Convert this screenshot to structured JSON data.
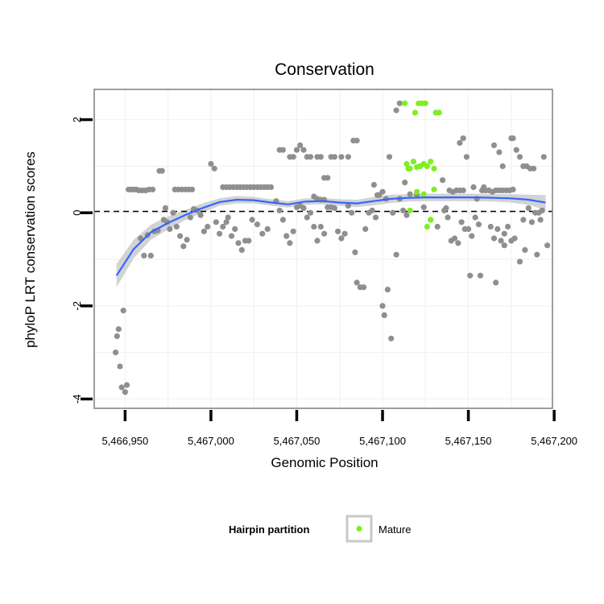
{
  "chart_data": {
    "type": "scatter",
    "title": "Conservation",
    "xlabel": "Genomic Position",
    "ylabel": "phyloP LRT conservation scores",
    "xlim": [
      5466932,
      5467199
    ],
    "ylim": [
      -4.2,
      2.65
    ],
    "x_ticks": [
      {
        "value": 5466950,
        "label": "5,466,950"
      },
      {
        "value": 5467000,
        "label": "5,467,000"
      },
      {
        "value": 5467050,
        "label": "5,467,050"
      },
      {
        "value": 5467100,
        "label": "5,467,100"
      },
      {
        "value": 5467150,
        "label": "5,467,150"
      },
      {
        "value": 5467200,
        "label": "5,467,200"
      }
    ],
    "y_ticks": [
      {
        "value": -4,
        "label": "-4"
      },
      {
        "value": -2,
        "label": "-2"
      },
      {
        "value": 0,
        "label": "0"
      },
      {
        "value": 2,
        "label": "2"
      }
    ],
    "reference_line": {
      "y": 0,
      "style": "dashed"
    },
    "legend": {
      "title": "Hairpin partition",
      "position": "bottom",
      "entries": [
        {
          "label": "Mature",
          "color": "#80ee22"
        }
      ]
    },
    "colors": {
      "hairpin": "#8f8f8f",
      "mature": "#80ee22",
      "smooth": "#3366ff",
      "ribbon": "#c8c8c8",
      "border": "#7f7f7f",
      "grid": "#f2f2f2"
    },
    "series": [
      {
        "name": "Hairpin",
        "points": [
          [
            5466944.5,
            -3.0
          ],
          [
            5466945.3,
            -2.65
          ],
          [
            5466946.2,
            -2.5
          ],
          [
            5466947.0,
            -3.3
          ],
          [
            5466948.0,
            -3.75
          ],
          [
            5466949.0,
            -2.1
          ],
          [
            5466950.0,
            -3.85
          ],
          [
            5466951.0,
            -3.7
          ],
          [
            5466952.0,
            0.5
          ],
          [
            5466953.5,
            0.5
          ],
          [
            5466955.0,
            0.5
          ],
          [
            5466956.5,
            0.5
          ],
          [
            5466958.0,
            0.48
          ],
          [
            5466960.0,
            0.48
          ],
          [
            5466962.0,
            0.48
          ],
          [
            5466964.0,
            0.5
          ],
          [
            5466966.0,
            0.5
          ],
          [
            5466959.0,
            -0.55
          ],
          [
            5466961.0,
            -0.92
          ],
          [
            5466963.0,
            -0.48
          ],
          [
            5466965.0,
            -0.92
          ],
          [
            5466967.0,
            -0.4
          ],
          [
            5466969.0,
            -0.38
          ],
          [
            5466970.0,
            0.9
          ],
          [
            5466971.5,
            0.9
          ],
          [
            5466972.5,
            -0.15
          ],
          [
            5466973.5,
            0.1
          ],
          [
            5466974.5,
            -0.2
          ],
          [
            5466976.0,
            -0.35
          ],
          [
            5466978.0,
            0.0
          ],
          [
            5466979.0,
            0.5
          ],
          [
            5466981.0,
            0.5
          ],
          [
            5466983.0,
            0.5
          ],
          [
            5466985.0,
            0.5
          ],
          [
            5466987.0,
            0.5
          ],
          [
            5466989.0,
            0.5
          ],
          [
            5466980.0,
            -0.3
          ],
          [
            5466982.0,
            -0.5
          ],
          [
            5466984.0,
            -0.72
          ],
          [
            5466986.0,
            -0.58
          ],
          [
            5466988.0,
            -0.1
          ],
          [
            5466990.0,
            0.08
          ],
          [
            5466992.0,
            0.05
          ],
          [
            5466994.0,
            -0.05
          ],
          [
            5466996.0,
            -0.4
          ],
          [
            5466998.0,
            -0.3
          ],
          [
            5467000.0,
            1.05
          ],
          [
            5467002.0,
            0.95
          ],
          [
            5467003.0,
            -0.2
          ],
          [
            5467005.0,
            -0.45
          ],
          [
            5467007.0,
            -0.3
          ],
          [
            5467009.0,
            -0.2
          ],
          [
            5467010.0,
            -0.1
          ],
          [
            5467012.0,
            -0.5
          ],
          [
            5467014.0,
            -0.35
          ],
          [
            5467016.0,
            -0.65
          ],
          [
            5467018.0,
            -0.8
          ],
          [
            5467020.0,
            -0.6
          ],
          [
            5467022.0,
            -0.6
          ],
          [
            5467024.0,
            -0.15
          ],
          [
            5467027.0,
            -0.25
          ],
          [
            5467030.0,
            -0.45
          ],
          [
            5467033.0,
            -0.35
          ],
          [
            5467007.0,
            0.55
          ],
          [
            5467009.0,
            0.55
          ],
          [
            5467011.0,
            0.55
          ],
          [
            5467013.0,
            0.55
          ],
          [
            5467015.0,
            0.55
          ],
          [
            5467017.0,
            0.55
          ],
          [
            5467019.0,
            0.55
          ],
          [
            5467021.0,
            0.55
          ],
          [
            5467023.0,
            0.55
          ],
          [
            5467025.0,
            0.55
          ],
          [
            5467027.0,
            0.55
          ],
          [
            5467029.0,
            0.55
          ],
          [
            5467031.0,
            0.55
          ],
          [
            5467033.0,
            0.55
          ],
          [
            5467035.0,
            0.55
          ],
          [
            5467038.0,
            0.25
          ],
          [
            5467040.0,
            0.05
          ],
          [
            5467042.0,
            -0.15
          ],
          [
            5467044.0,
            -0.5
          ],
          [
            5467046.0,
            -0.65
          ],
          [
            5467048.0,
            -0.4
          ],
          [
            5467050.0,
            0.12
          ],
          [
            5467052.0,
            0.15
          ],
          [
            5467054.0,
            0.1
          ],
          [
            5467056.0,
            -0.1
          ],
          [
            5467058.0,
            0.0
          ],
          [
            5467060.0,
            -0.3
          ],
          [
            5467062.0,
            -0.6
          ],
          [
            5467064.0,
            -0.3
          ],
          [
            5467066.0,
            -0.45
          ],
          [
            5467040.0,
            1.35
          ],
          [
            5467042.0,
            1.35
          ],
          [
            5467046.0,
            1.2
          ],
          [
            5467048.0,
            1.2
          ],
          [
            5467050.0,
            1.35
          ],
          [
            5467052.0,
            1.45
          ],
          [
            5467054.0,
            1.35
          ],
          [
            5467056.0,
            1.2
          ],
          [
            5467058.0,
            1.2
          ],
          [
            5467062.0,
            1.2
          ],
          [
            5467064.0,
            1.2
          ],
          [
            5467066.0,
            0.75
          ],
          [
            5467068.0,
            0.75
          ],
          [
            5467070.0,
            1.2
          ],
          [
            5467072.0,
            1.2
          ],
          [
            5467076.0,
            1.2
          ],
          [
            5467080.0,
            1.2
          ],
          [
            5467083.0,
            1.55
          ],
          [
            5467085.0,
            1.55
          ],
          [
            5467060.0,
            0.35
          ],
          [
            5467062.0,
            0.3
          ],
          [
            5467064.0,
            0.28
          ],
          [
            5467066.0,
            0.28
          ],
          [
            5467068.0,
            0.12
          ],
          [
            5467070.0,
            0.12
          ],
          [
            5467072.0,
            0.1
          ],
          [
            5467074.0,
            -0.4
          ],
          [
            5467076.0,
            -0.55
          ],
          [
            5467078.0,
            -0.45
          ],
          [
            5467080.0,
            0.15
          ],
          [
            5467082.0,
            0.0
          ],
          [
            5467084.0,
            -0.85
          ],
          [
            5467085.0,
            -1.5
          ],
          [
            5467087.0,
            -1.6
          ],
          [
            5467089.0,
            -1.6
          ],
          [
            5467090.0,
            -0.35
          ],
          [
            5467092.0,
            0.0
          ],
          [
            5467094.0,
            0.05
          ],
          [
            5467096.0,
            -0.1
          ],
          [
            5467098.0,
            0.38
          ],
          [
            5467100.0,
            -2.0
          ],
          [
            5467101.0,
            -2.2
          ],
          [
            5467103.0,
            -1.65
          ],
          [
            5467105.0,
            -2.7
          ],
          [
            5467095.0,
            0.6
          ],
          [
            5467097.0,
            0.38
          ],
          [
            5467100.0,
            0.45
          ],
          [
            5467102.0,
            0.3
          ],
          [
            5467104.0,
            1.2
          ],
          [
            5467106.0,
            0.0
          ],
          [
            5467108.0,
            -0.9
          ],
          [
            5467110.0,
            0.3
          ],
          [
            5467112.0,
            0.05
          ],
          [
            5467114.0,
            -0.05
          ],
          [
            5467108.0,
            2.2
          ],
          [
            5467110.0,
            2.35
          ],
          [
            5467113.0,
            0.65
          ],
          [
            5467116.0,
            0.4
          ],
          [
            5467120.0,
            0.38
          ],
          [
            5467124.0,
            0.12
          ],
          [
            5467128.0,
            -0.15
          ],
          [
            5467132.0,
            -0.3
          ],
          [
            5467135.0,
            0.7
          ],
          [
            5467137.0,
            0.1
          ],
          [
            5467139.0,
            0.48
          ],
          [
            5467141.0,
            0.45
          ],
          [
            5467143.0,
            0.48
          ],
          [
            5467145.0,
            0.48
          ],
          [
            5467147.0,
            0.48
          ],
          [
            5467136.0,
            0.05
          ],
          [
            5467138.0,
            -0.1
          ],
          [
            5467140.0,
            -0.6
          ],
          [
            5467142.0,
            -0.55
          ],
          [
            5467144.0,
            -0.65
          ],
          [
            5467146.0,
            -0.2
          ],
          [
            5467148.0,
            -0.35
          ],
          [
            5467150.0,
            -0.35
          ],
          [
            5467152.0,
            -0.5
          ],
          [
            5467154.0,
            -0.1
          ],
          [
            5467156.0,
            -0.25
          ],
          [
            5467145.0,
            1.5
          ],
          [
            5467147.0,
            1.6
          ],
          [
            5467149.0,
            1.2
          ],
          [
            5467151.0,
            -1.35
          ],
          [
            5467153.0,
            0.55
          ],
          [
            5467155.0,
            0.3
          ],
          [
            5467157.0,
            -1.35
          ],
          [
            5467159.0,
            0.55
          ],
          [
            5467158.0,
            0.48
          ],
          [
            5467160.0,
            0.48
          ],
          [
            5467162.0,
            0.48
          ],
          [
            5467164.0,
            0.45
          ],
          [
            5467166.0,
            0.48
          ],
          [
            5467168.0,
            0.48
          ],
          [
            5467170.0,
            0.48
          ],
          [
            5467172.0,
            0.48
          ],
          [
            5467174.0,
            0.48
          ],
          [
            5467176.0,
            0.5
          ],
          [
            5467163.0,
            -0.3
          ],
          [
            5467165.0,
            -0.55
          ],
          [
            5467167.0,
            -0.35
          ],
          [
            5467169.0,
            -0.6
          ],
          [
            5467171.0,
            -0.7
          ],
          [
            5467173.0,
            -0.3
          ],
          [
            5467175.0,
            -0.6
          ],
          [
            5467177.0,
            -0.55
          ],
          [
            5467165.0,
            1.45
          ],
          [
            5467166.0,
            -1.5
          ],
          [
            5467168.0,
            1.3
          ],
          [
            5467170.0,
            1.0
          ],
          [
            5467171.0,
            -0.45
          ],
          [
            5467175.0,
            1.6
          ],
          [
            5467176.0,
            1.6
          ],
          [
            5467178.0,
            1.35
          ],
          [
            5467180.0,
            1.2
          ],
          [
            5467182.0,
            1.0
          ],
          [
            5467184.0,
            1.0
          ],
          [
            5467186.0,
            0.95
          ],
          [
            5467188.0,
            0.95
          ],
          [
            5467180.0,
            -1.05
          ],
          [
            5467182.0,
            -0.15
          ],
          [
            5467183.0,
            -0.8
          ],
          [
            5467185.0,
            0.1
          ],
          [
            5467187.0,
            -0.2
          ],
          [
            5467189.0,
            0.0
          ],
          [
            5467190.0,
            -0.9
          ],
          [
            5467191.0,
            0.0
          ],
          [
            5467192.0,
            -0.15
          ],
          [
            5467193.0,
            0.05
          ],
          [
            5467194.0,
            1.2
          ],
          [
            5467196.0,
            -0.7
          ]
        ]
      },
      {
        "name": "Mature",
        "points": [
          [
            5467113.0,
            2.35
          ],
          [
            5467119.0,
            2.15
          ],
          [
            5467121.0,
            2.35
          ],
          [
            5467123.0,
            2.35
          ],
          [
            5467125.0,
            2.35
          ],
          [
            5467131.0,
            2.15
          ],
          [
            5467133.0,
            2.15
          ],
          [
            5467114.0,
            1.05
          ],
          [
            5467116.0,
            0.95
          ],
          [
            5467118.0,
            1.1
          ],
          [
            5467120.0,
            0.98
          ],
          [
            5467122.0,
            1.0
          ],
          [
            5467124.0,
            1.05
          ],
          [
            5467126.0,
            1.0
          ],
          [
            5467128.0,
            1.1
          ],
          [
            5467130.0,
            0.95
          ],
          [
            5467115.0,
            0.95
          ],
          [
            5467120.0,
            0.45
          ],
          [
            5467124.0,
            0.4
          ],
          [
            5467130.0,
            0.5
          ],
          [
            5467116.0,
            0.05
          ],
          [
            5467126.0,
            -0.3
          ],
          [
            5467128.0,
            -0.15
          ]
        ]
      }
    ],
    "smooth_curve": {
      "x": [
        5466945,
        5466955,
        5466965,
        5466975,
        5466985,
        5466995,
        5467005,
        5467015,
        5467025,
        5467035,
        5467045,
        5467055,
        5467065,
        5467075,
        5467085,
        5467095,
        5467105,
        5467115,
        5467125,
        5467135,
        5467145,
        5467155,
        5467165,
        5467175,
        5467185,
        5467195
      ],
      "y": [
        -1.35,
        -0.78,
        -0.42,
        -0.22,
        -0.05,
        0.1,
        0.23,
        0.28,
        0.27,
        0.22,
        0.18,
        0.24,
        0.25,
        0.22,
        0.2,
        0.25,
        0.3,
        0.32,
        0.33,
        0.33,
        0.33,
        0.33,
        0.32,
        0.31,
        0.28,
        0.22
      ],
      "lower": [
        -1.6,
        -0.98,
        -0.58,
        -0.36,
        -0.16,
        0.0,
        0.15,
        0.2,
        0.2,
        0.15,
        0.11,
        0.17,
        0.18,
        0.15,
        0.12,
        0.16,
        0.21,
        0.24,
        0.25,
        0.25,
        0.25,
        0.25,
        0.24,
        0.22,
        0.17,
        0.06
      ],
      "upper": [
        -1.1,
        -0.58,
        -0.26,
        -0.08,
        0.06,
        0.2,
        0.31,
        0.36,
        0.34,
        0.29,
        0.25,
        0.31,
        0.32,
        0.29,
        0.28,
        0.34,
        0.39,
        0.4,
        0.41,
        0.41,
        0.41,
        0.41,
        0.4,
        0.4,
        0.39,
        0.38
      ]
    }
  }
}
